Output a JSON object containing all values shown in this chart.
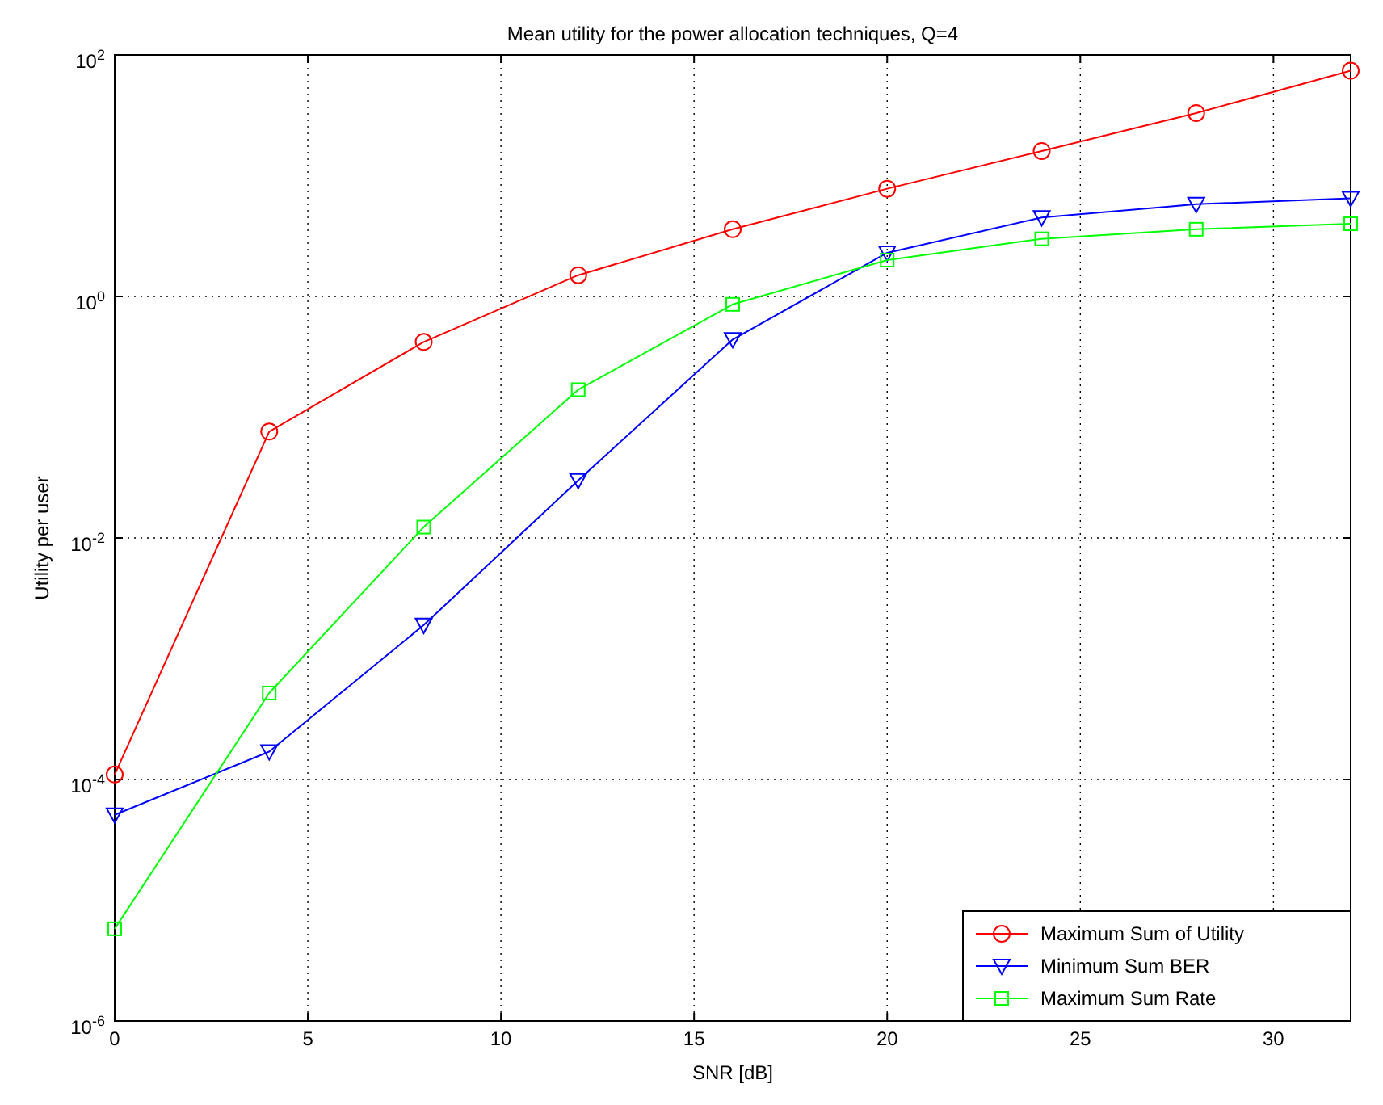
{
  "chart_data": {
    "type": "line",
    "title": "Mean utility for the power allocation techniques, Q=4",
    "xlabel": "SNR [dB]",
    "ylabel": "Utility per user",
    "x": [
      0,
      4,
      8,
      12,
      16,
      20,
      24,
      28,
      32
    ],
    "series": [
      {
        "name": "Maximum Sum of Utility",
        "color": "#ff0000",
        "marker": "circle",
        "values": [
          0.00011,
          0.076,
          0.42,
          1.5,
          3.6,
          7.8,
          16,
          33,
          74
        ]
      },
      {
        "name": "Minimum Sum BER",
        "color": "#0000ff",
        "marker": "triangle",
        "values": [
          5.1e-05,
          0.00017,
          0.0019,
          0.03,
          0.44,
          2.3,
          4.5,
          5.8,
          6.5
        ]
      },
      {
        "name": "Maximum Sum Rate",
        "color": "#00ff00",
        "marker": "square",
        "values": [
          5.8e-06,
          0.00052,
          0.0123,
          0.169,
          0.86,
          2.0,
          3.0,
          3.6,
          4.0
        ]
      }
    ],
    "log": "y",
    "xlim": [
      0,
      32
    ],
    "xticks": [
      0,
      5,
      10,
      15,
      20,
      25,
      30
    ],
    "ylim": [
      1e-06,
      100
    ],
    "yticks": [
      {
        "value": 1e-06,
        "label": "10$^{-6}$"
      },
      {
        "value": 0.0001,
        "label": "10$^{-4}$"
      },
      {
        "value": 0.01,
        "label": "10$^{-2}$"
      },
      {
        "value": 1,
        "label": "10$^{0}$"
      },
      {
        "value": 100,
        "label": "10$^{2}$"
      }
    ],
    "grid": true,
    "legend": "bottom right",
    "line_style": "solid"
  }
}
